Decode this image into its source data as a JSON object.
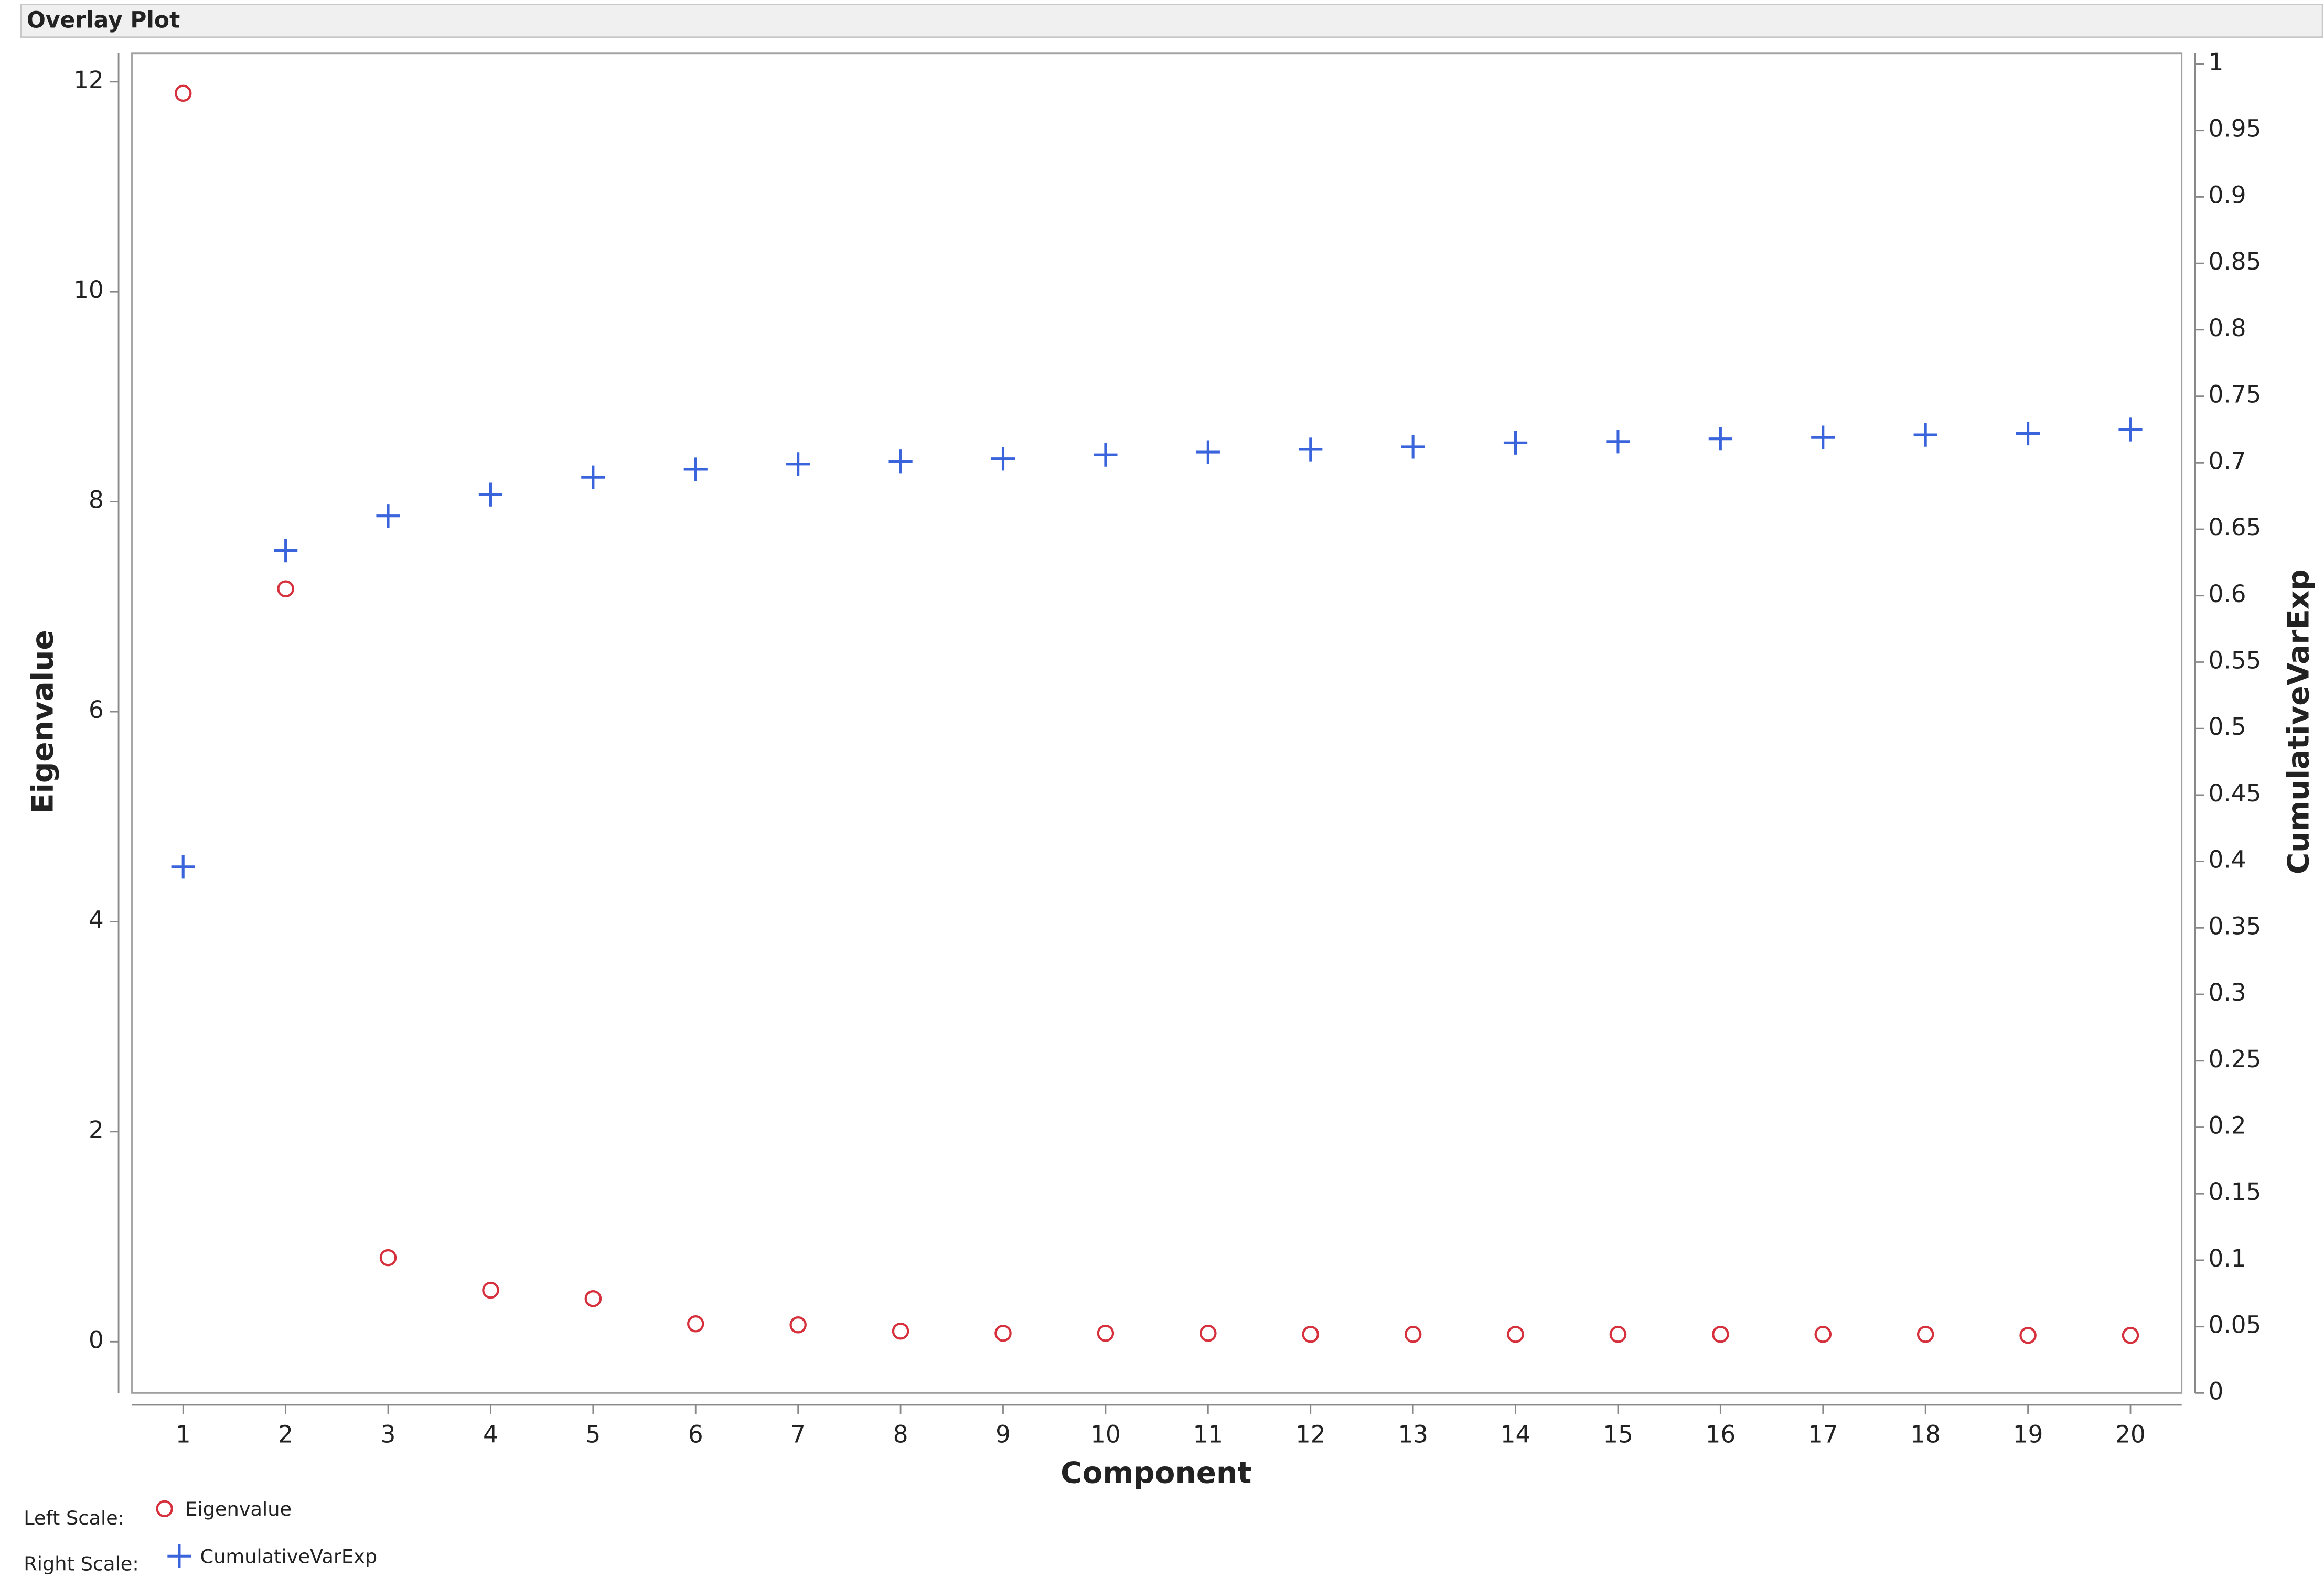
{
  "chart_data": {
    "type": "scatter",
    "title": "Overlay Plot",
    "x_label": "Component",
    "y_label": "Eigenvalue",
    "y2_label": "CumulativeVarExp",
    "legend_left_label": "Left Scale:",
    "legend_right_label": "Right Scale:",
    "x": [
      1,
      2,
      3,
      4,
      5,
      6,
      7,
      8,
      9,
      10,
      11,
      12,
      13,
      14,
      15,
      16,
      17,
      18,
      19,
      20
    ],
    "xlim": [
      0.5,
      20.5
    ],
    "xticks": [
      1,
      2,
      3,
      4,
      5,
      6,
      7,
      8,
      9,
      10,
      11,
      12,
      13,
      14,
      15,
      16,
      17,
      18,
      19,
      20
    ],
    "ylim": [
      -0.49,
      12.27
    ],
    "yticks": [
      0,
      2,
      4,
      6,
      8,
      10,
      12
    ],
    "y2lim": [
      0,
      1.008
    ],
    "y2ticks": [
      0,
      0.05,
      0.1,
      0.15,
      0.2,
      0.25,
      0.3,
      0.35,
      0.4,
      0.45,
      0.5,
      0.55,
      0.6,
      0.65,
      0.7,
      0.75,
      0.8,
      0.85,
      0.9,
      0.95,
      1
    ],
    "series": [
      {
        "name": "Eigenvalue",
        "color": "#d6303c",
        "marker": "circle",
        "values": [
          11.89,
          7.17,
          0.8,
          0.49,
          0.41,
          0.17,
          0.16,
          0.1,
          0.08,
          0.08,
          0.08,
          0.07,
          0.07,
          0.07,
          0.07,
          0.07,
          0.07,
          0.07,
          0.06,
          0.06
        ]
      },
      {
        "name": "CumulativeVarExp",
        "color": "#3a64dc",
        "marker": "plus",
        "axis": "y2",
        "values": [
          0.396,
          0.634,
          0.66,
          0.676,
          0.689,
          0.695,
          0.699,
          0.701,
          0.703,
          0.706,
          0.708,
          0.71,
          0.712,
          0.715,
          0.716,
          0.718,
          0.719,
          0.721,
          0.722,
          0.725
        ]
      }
    ]
  }
}
